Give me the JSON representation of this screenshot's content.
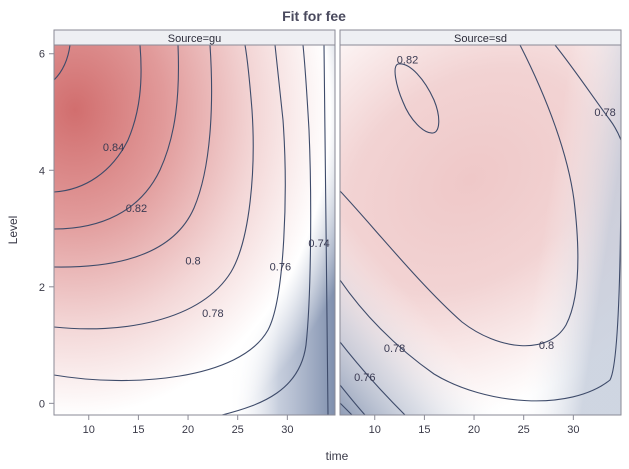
{
  "chart_data": {
    "type": "contour",
    "title": "Fit for fee",
    "xlabel": "time",
    "ylabel": "Level",
    "x_ticks": [
      "10",
      "15",
      "20",
      "25",
      "30"
    ],
    "y_ticks": [
      "0",
      "2",
      "4",
      "6"
    ],
    "xlim": [
      6.5,
      34.8
    ],
    "ylim": [
      -0.2,
      6.15
    ],
    "colors": {
      "low": "#7f8fad",
      "mid": "#ffffff",
      "high": "#d16e6e"
    },
    "panels": [
      {
        "strip": "Source=gu",
        "contour_labels": [
          {
            "text": "0.84",
            "x": 12.5,
            "y": 4.4
          },
          {
            "text": "0.82",
            "x": 14.8,
            "y": 3.35
          },
          {
            "text": "0.8",
            "x": 20.5,
            "y": 2.45
          },
          {
            "text": "0.78",
            "x": 22.5,
            "y": 1.55
          },
          {
            "text": "0.76",
            "x": 29.3,
            "y": 2.35
          },
          {
            "text": "0.74",
            "x": 33.2,
            "y": 2.75
          }
        ]
      },
      {
        "strip": "Source=sd",
        "contour_labels": [
          {
            "text": "0.82",
            "x": 13.3,
            "y": 5.9
          },
          {
            "text": "0.78",
            "x": 33.2,
            "y": 5.0
          },
          {
            "text": "0.8",
            "x": 27.3,
            "y": 1.0
          },
          {
            "text": "0.78",
            "x": 12.0,
            "y": 0.95
          },
          {
            "text": "0.76",
            "x": 9.0,
            "y": 0.45
          }
        ]
      }
    ]
  }
}
